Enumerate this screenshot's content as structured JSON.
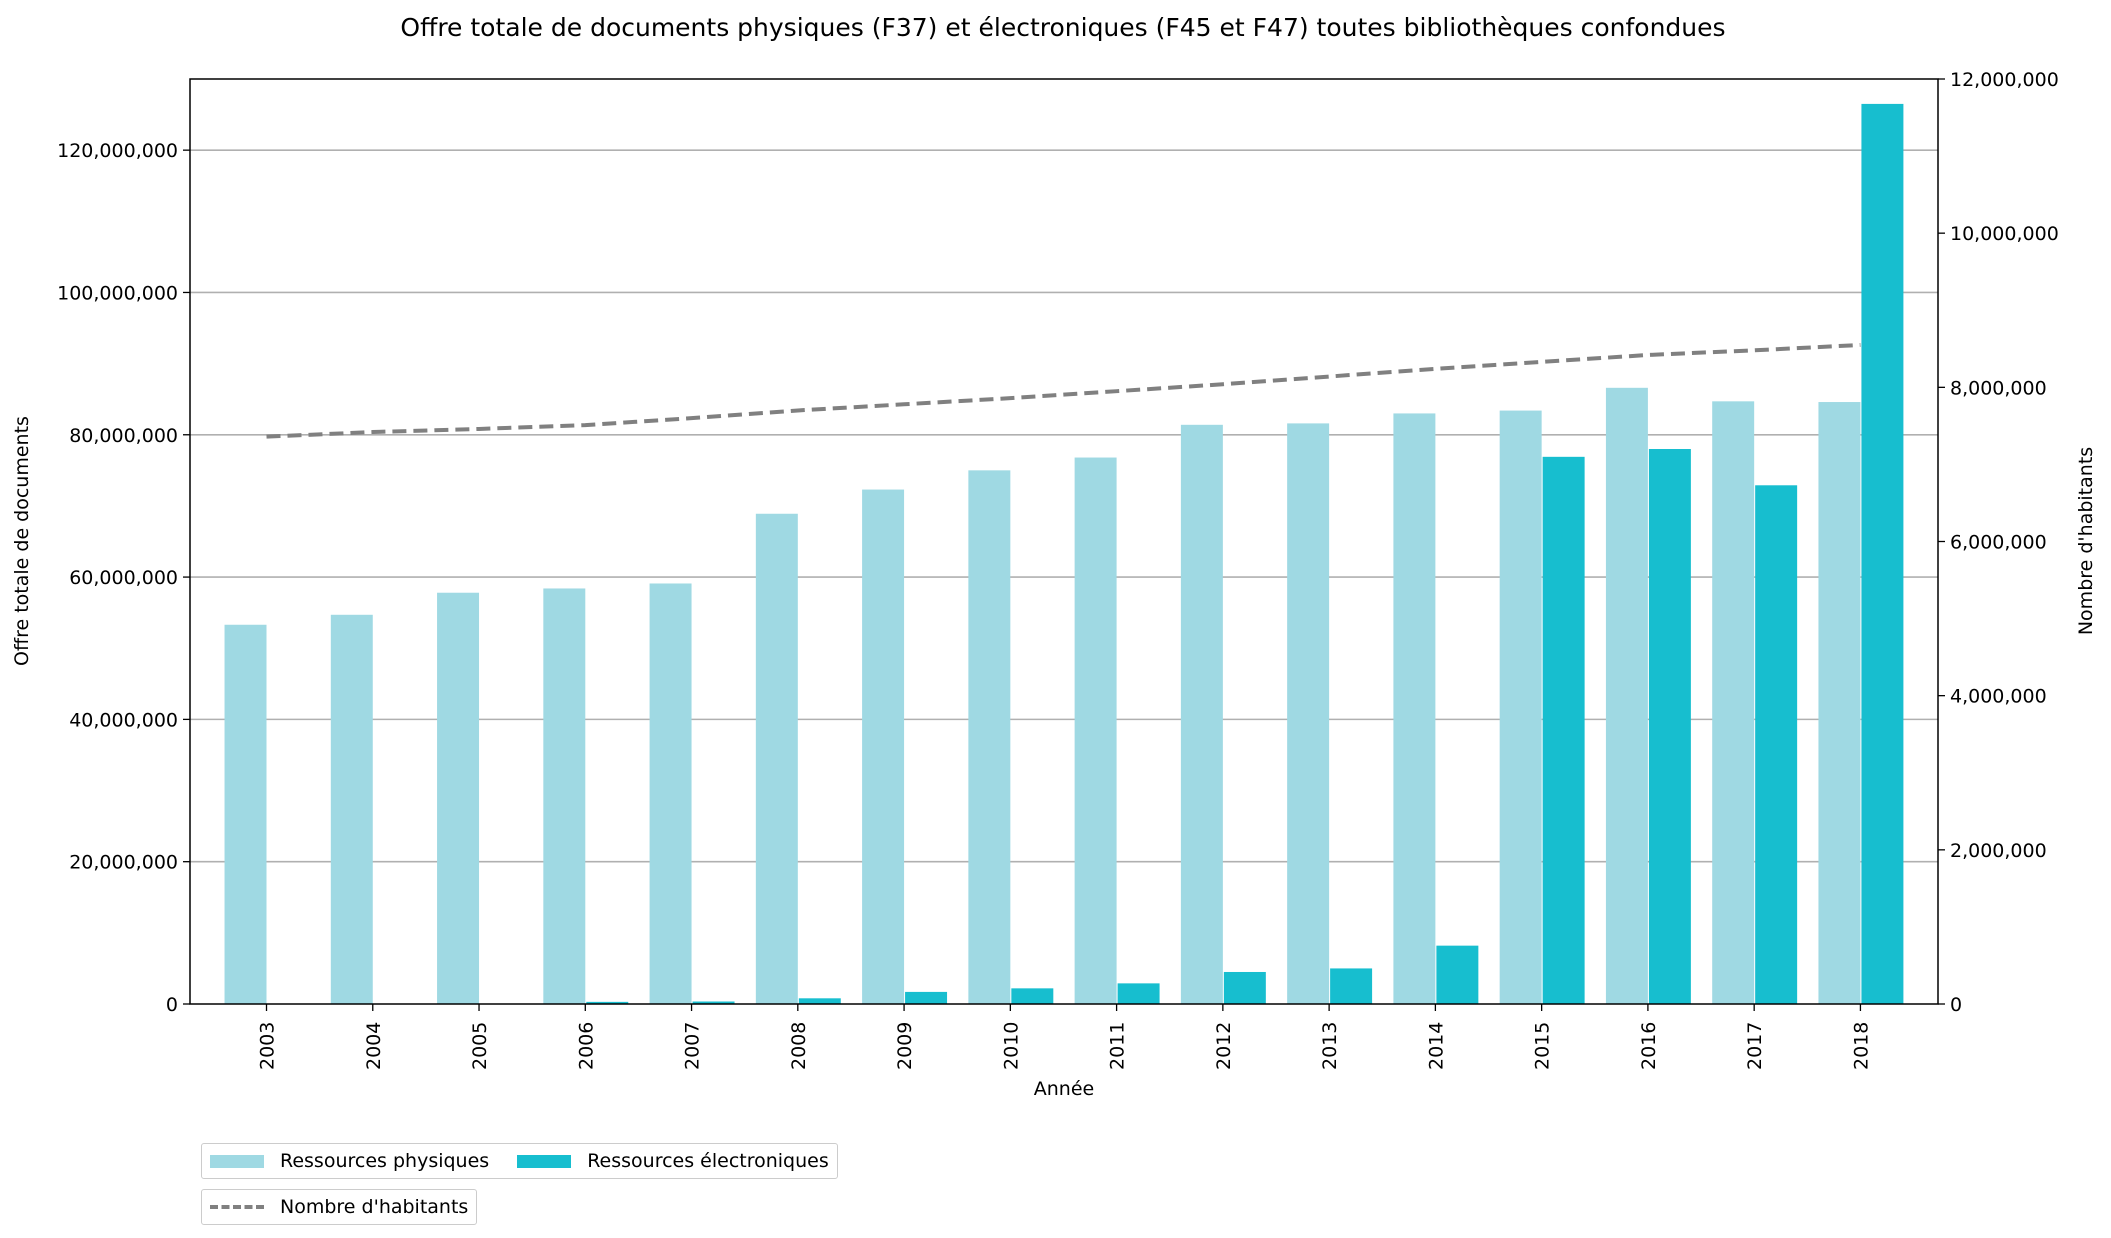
{
  "chart_data": {
    "type": "bar",
    "title": "Offre totale de documents physiques (F37) et électroniques (F45 et F47) toutes bibliothèques confondues",
    "xlabel": "Année",
    "ylabel": "Offre totale de documents",
    "y2label": "Nombre d'habitants",
    "categories": [
      "2003",
      "2004",
      "2005",
      "2006",
      "2007",
      "2008",
      "2009",
      "2010",
      "2011",
      "2012",
      "2013",
      "2014",
      "2015",
      "2016",
      "2017",
      "2018"
    ],
    "ylim": [
      0,
      130000000
    ],
    "y2lim": [
      0,
      12000000
    ],
    "yticks": [
      0,
      20000000,
      40000000,
      60000000,
      80000000,
      100000000,
      120000000
    ],
    "ytick_labels": [
      "0",
      "20,000,000",
      "40,000,000",
      "60,000,000",
      "80,000,000",
      "100,000,000",
      "120,000,000"
    ],
    "y2ticks": [
      0,
      2000000,
      4000000,
      6000000,
      8000000,
      10000000,
      12000000
    ],
    "y2tick_labels": [
      "0",
      "2,000,000",
      "4,000,000",
      "6,000,000",
      "8,000,000",
      "10,000,000",
      "12,000,000"
    ],
    "grid": true,
    "legend_placement": "bottom-left, below chart",
    "series": [
      {
        "name": "Ressources physiques",
        "type": "bar",
        "axis": "left",
        "color": "#9fd9e3",
        "values": [
          53300000,
          54700000,
          57800000,
          58400000,
          59100000,
          68900000,
          72300000,
          75000000,
          76800000,
          81400000,
          81600000,
          83000000,
          83400000,
          86600000,
          84700000,
          84600000
        ]
      },
      {
        "name": "Ressources électroniques",
        "type": "bar",
        "axis": "left",
        "color": "#17becf",
        "values": [
          0,
          0,
          0,
          300000,
          350000,
          800000,
          1700000,
          2200000,
          2900000,
          4500000,
          5000000,
          8200000,
          76900000,
          78000000,
          72900000,
          126500000
        ]
      },
      {
        "name": "Nombre d'habitants",
        "type": "line",
        "axis": "right",
        "color": "#808080",
        "style": "dashed",
        "values": [
          7360000,
          7420000,
          7460000,
          7510000,
          7600000,
          7700000,
          7780000,
          7860000,
          7950000,
          8040000,
          8140000,
          8240000,
          8330000,
          8420000,
          8480000,
          8550000
        ]
      }
    ]
  }
}
